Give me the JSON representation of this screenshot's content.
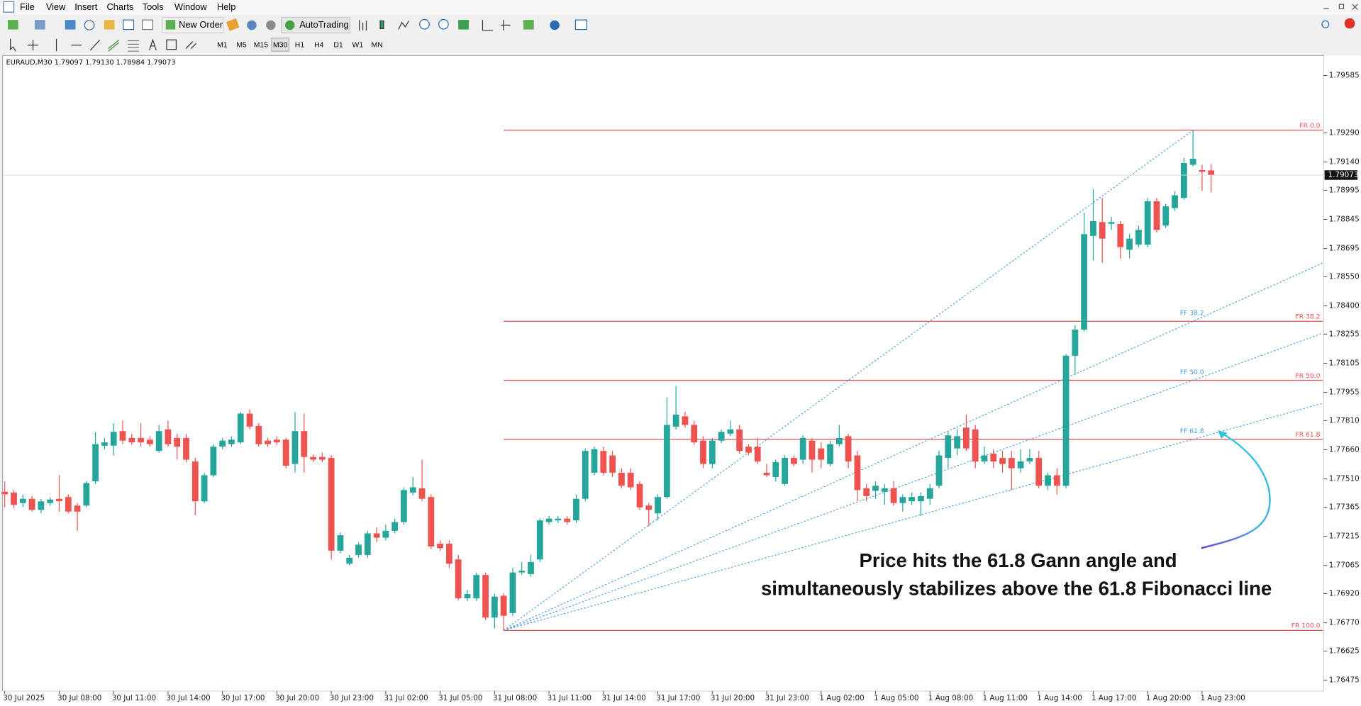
{
  "window": {
    "menu": [
      "File",
      "View",
      "Insert",
      "Charts",
      "Tools",
      "Window",
      "Help"
    ],
    "toolbar": {
      "new_order": "New Order",
      "autotrading": "AutoTrading",
      "timeframes": [
        "M1",
        "M5",
        "M15",
        "M30",
        "H1",
        "H4",
        "D1",
        "W1",
        "MN"
      ]
    }
  },
  "chart_data": {
    "type": "candlestick",
    "title": "EURAUD,M30  1.79097 1.79130 1.78984 1.79073",
    "up_color": "#26a69a",
    "down_color": "#ef5350",
    "categories": [
      "30 Jul 2025",
      null,
      null,
      null,
      null,
      null,
      "30 Jul 08:00",
      null,
      null,
      null,
      null,
      null,
      "30 Jul 11:00",
      null,
      null,
      null,
      null,
      null,
      "30 Jul 14:00",
      null,
      null,
      null,
      null,
      null,
      "30 Jul 17:00",
      null,
      null,
      null,
      null,
      null,
      "30 Jul 20:00",
      null,
      null,
      null,
      null,
      null,
      "30 Jul 23:00",
      null,
      null,
      null,
      null,
      null,
      "31 Jul 02:00",
      null,
      null,
      null,
      null,
      null,
      "31 Jul 05:00",
      null,
      null,
      null,
      null,
      null,
      "31 Jul 08:00",
      null,
      null,
      null,
      null,
      null,
      "31 Jul 11:00",
      null,
      null,
      null,
      null,
      null,
      "31 Jul 14:00",
      null,
      null,
      null,
      null,
      null,
      "31 Jul 17:00",
      null,
      null,
      null,
      null,
      null,
      "31 Jul 20:00",
      null,
      null,
      null,
      null,
      null,
      "31 Jul 23:00",
      null,
      null,
      null,
      null,
      null,
      "1 Aug 02:00",
      null,
      null,
      null,
      null,
      null,
      "1 Aug 05:00",
      null,
      null,
      null,
      null,
      null,
      "1 Aug 08:00",
      null,
      null,
      null,
      null,
      null,
      "1 Aug 11:00",
      null,
      null,
      null,
      null,
      null,
      "1 Aug 14:00",
      null,
      null,
      null,
      null,
      null,
      "1 Aug 17:00",
      null,
      null,
      null,
      null,
      null,
      "1 Aug 20:00",
      null,
      null,
      null,
      null,
      null,
      "1 Aug 23:00",
      null
    ],
    "open": [
      1.77444,
      1.7744,
      1.77386,
      1.77408,
      1.77351,
      1.77386,
      1.77408,
      1.77417,
      1.77373,
      1.77373,
      1.77498,
      1.77681,
      1.77681,
      1.77756,
      1.77721,
      1.77721,
      1.77712,
      1.77654,
      1.77765,
      1.77721,
      1.77721,
      1.776,
      1.77395,
      1.77529,
      1.77676,
      1.77689,
      1.77698,
      1.77846,
      1.77783,
      1.77707,
      1.77712,
      1.77712,
      1.77587,
      1.77756,
      1.77623,
      1.77623,
      1.77618,
      1.77141,
      1.77074,
      1.77119,
      1.77119,
      1.7723,
      1.77208,
      1.77243,
      1.77288,
      1.7744,
      1.77462,
      1.77417,
      1.77177,
      1.77177,
      1.77096,
      1.76896,
      1.76896,
      1.77016,
      1.76797,
      1.76909,
      1.7682,
      1.77029,
      1.7702,
      1.77096,
      1.77288,
      1.77297,
      1.77306,
      1.77297,
      1.77408,
      1.77542,
      1.77654,
      1.77631,
      1.77542,
      1.77542,
      1.77484,
      1.77373,
      1.77333,
      1.77417,
      1.77779,
      1.77832,
      1.77788,
      1.77707,
      1.77587,
      1.77707,
      1.77743,
      1.77765,
      1.77676,
      1.77676,
      1.77542,
      1.7752,
      1.77484,
      1.77618,
      1.77609,
      1.77707,
      1.77667,
      1.77587,
      1.77689,
      1.7773,
      1.77631,
      1.77462,
      1.77449,
      1.77444,
      1.77462,
      1.77386,
      1.77395,
      1.77395,
      1.77408,
      1.77475,
      1.77618,
      1.77667,
      1.77774,
      1.77765,
      1.776,
      1.7764,
      1.77618,
      1.77618,
      1.77565,
      1.776,
      1.77618,
      1.77475,
      1.77529,
      1.77475,
      1.78144,
      1.78278,
      1.7876,
      1.78831,
      1.78822,
      1.78822,
      1.78689,
      1.78715,
      1.78715,
      1.78938,
      1.78813,
      1.78903,
      1.78956,
      1.79126,
      1.79099,
      1.79097
    ],
    "high": [
      1.77498,
      1.77453,
      1.77431,
      1.77422,
      1.77408,
      1.77417,
      1.77529,
      1.77431,
      1.77386,
      1.77498,
      1.77752,
      1.77721,
      1.77797,
      1.7781,
      1.77743,
      1.77797,
      1.7773,
      1.77788,
      1.7781,
      1.77743,
      1.77743,
      1.77618,
      1.77542,
      1.77689,
      1.77721,
      1.7773,
      1.77855,
      1.77868,
      1.77797,
      1.77721,
      1.7773,
      1.77721,
      1.77855,
      1.77846,
      1.77636,
      1.77645,
      1.77631,
      1.77235,
      1.77119,
      1.77185,
      1.77243,
      1.77261,
      1.77275,
      1.77306,
      1.77467,
      1.7752,
      1.77609,
      1.77431,
      1.77194,
      1.77194,
      1.77119,
      1.7694,
      1.77029,
      1.77029,
      1.76918,
      1.76922,
      1.77052,
      1.77083,
      1.77119,
      1.77306,
      1.77319,
      1.77319,
      1.77319,
      1.77431,
      1.77667,
      1.77676,
      1.77676,
      1.77654,
      1.77565,
      1.77565,
      1.77498,
      1.77386,
      1.77431,
      1.7793,
      1.77988,
      1.77855,
      1.7781,
      1.7773,
      1.77721,
      1.77765,
      1.7781,
      1.77788,
      1.77689,
      1.77721,
      1.77587,
      1.77609,
      1.77631,
      1.77631,
      1.77734,
      1.77721,
      1.77698,
      1.77707,
      1.77788,
      1.77743,
      1.77654,
      1.77484,
      1.77498,
      1.77484,
      1.77498,
      1.77431,
      1.7744,
      1.7744,
      1.77484,
      1.77654,
      1.77752,
      1.77765,
      1.77841,
      1.77788,
      1.77676,
      1.77663,
      1.77654,
      1.77654,
      1.77663,
      1.77663,
      1.77654,
      1.77542,
      1.77565,
      1.78153,
      1.783,
      1.7888,
      1.79001,
      1.78956,
      1.78858,
      1.78836,
      1.78769,
      1.78813,
      1.78956,
      1.78956,
      1.78925,
      1.78992,
      1.79161,
      1.79304,
      1.79126,
      1.7913
    ],
    "low": [
      1.77364,
      1.77359,
      1.77364,
      1.77342,
      1.77333,
      1.77373,
      1.77342,
      1.77333,
      1.77243,
      1.77364,
      1.77484,
      1.77663,
      1.77631,
      1.77689,
      1.77685,
      1.77676,
      1.77676,
      1.77645,
      1.77676,
      1.77609,
      1.77596,
      1.77324,
      1.77386,
      1.7752,
      1.77663,
      1.77676,
      1.77689,
      1.77765,
      1.77676,
      1.77676,
      1.77685,
      1.77565,
      1.77542,
      1.77542,
      1.77596,
      1.77596,
      1.77096,
      1.77128,
      1.77065,
      1.77105,
      1.77105,
      1.77185,
      1.77194,
      1.7723,
      1.77275,
      1.77426,
      1.77395,
      1.7715,
      1.77141,
      1.77052,
      1.76887,
      1.76882,
      1.76882,
      1.76784,
      1.7674,
      1.76731,
      1.76806,
      1.77016,
      1.77007,
      1.77083,
      1.77275,
      1.77284,
      1.77275,
      1.77284,
      1.77395,
      1.77529,
      1.77529,
      1.7752,
      1.77462,
      1.77453,
      1.77351,
      1.77266,
      1.77297,
      1.77408,
      1.77765,
      1.77774,
      1.77685,
      1.77565,
      1.77565,
      1.77694,
      1.7773,
      1.7764,
      1.77631,
      1.77587,
      1.7752,
      1.77498,
      1.77475,
      1.77574,
      1.77587,
      1.77542,
      1.77565,
      1.77574,
      1.77676,
      1.77565,
      1.77395,
      1.77395,
      1.77408,
      1.77377,
      1.77373,
      1.77342,
      1.77377,
      1.77319,
      1.77377,
      1.77462,
      1.77565,
      1.77631,
      1.77654,
      1.77565,
      1.77587,
      1.77565,
      1.77542,
      1.77453,
      1.77542,
      1.77587,
      1.77462,
      1.77453,
      1.77431,
      1.77462,
      1.78046,
      1.78269,
      1.78635,
      1.78622,
      1.78791,
      1.78644,
      1.78644,
      1.78702,
      1.78702,
      1.78778,
      1.788,
      1.78889,
      1.78947,
      1.79117,
      1.78992,
      1.78984
    ],
    "close": [
      1.77431,
      1.77377,
      1.77408,
      1.77351,
      1.77395,
      1.77404,
      1.77395,
      1.77342,
      1.77342,
      1.77489,
      1.77689,
      1.77698,
      1.77752,
      1.77707,
      1.77698,
      1.77698,
      1.77689,
      1.77756,
      1.77689,
      1.77676,
      1.77609,
      1.77395,
      1.77529,
      1.77676,
      1.77707,
      1.77712,
      1.77846,
      1.77779,
      1.77689,
      1.77689,
      1.77698,
      1.77578,
      1.77756,
      1.77623,
      1.77609,
      1.77609,
      1.77141,
      1.77221,
      1.77105,
      1.77172,
      1.7723,
      1.77208,
      1.77243,
      1.77288,
      1.77453,
      1.77467,
      1.77408,
      1.77163,
      1.77154,
      1.77074,
      1.76896,
      1.76918,
      1.77016,
      1.76797,
      1.76905,
      1.76806,
      1.77029,
      1.77038,
      1.77083,
      1.77297,
      1.77306,
      1.77306,
      1.77288,
      1.77408,
      1.77654,
      1.77663,
      1.77542,
      1.77542,
      1.77475,
      1.77467,
      1.77364,
      1.77351,
      1.77417,
      1.77788,
      1.77841,
      1.77788,
      1.77698,
      1.77587,
      1.77707,
      1.77752,
      1.77765,
      1.77654,
      1.77645,
      1.776,
      1.77529,
      1.77596,
      1.77618,
      1.77587,
      1.77721,
      1.77609,
      1.77609,
      1.77689,
      1.77721,
      1.776,
      1.77453,
      1.77422,
      1.77475,
      1.77462,
      1.77386,
      1.77417,
      1.77417,
      1.77422,
      1.77462,
      1.77631,
      1.77734,
      1.7773,
      1.77667,
      1.776,
      1.77631,
      1.776,
      1.77587,
      1.77565,
      1.776,
      1.77618,
      1.77475,
      1.77529,
      1.77475,
      1.78144,
      1.78278,
      1.78769,
      1.78836,
      1.78746,
      1.78831,
      1.78702,
      1.78746,
      1.78791,
      1.78938,
      1.78791,
      1.78912,
      1.78969,
      1.79135,
      1.79157,
      1.7909,
      1.79073
    ],
    "ylim": [
      1.76418,
      1.79679
    ],
    "yticks": [
      1.79585,
      {
        "value": 1.7929,
        "label": "1.79290"
      },
      {
        "value": 1.7914,
        "label": "1.79140"
      },
      1.78995,
      1.78845,
      1.78695,
      {
        "value": 1.7855,
        "label": "1.78550"
      },
      {
        "value": 1.784,
        "label": "1.78400"
      },
      1.78255,
      1.78105,
      1.77955,
      {
        "value": 1.7781,
        "label": "1.77810"
      },
      {
        "value": 1.7766,
        "label": "1.77660"
      },
      {
        "value": 1.7751,
        "label": "1.77510"
      },
      1.77365,
      1.77215,
      1.77065,
      {
        "value": 1.7692,
        "label": "1.76920"
      },
      {
        "value": 1.7677,
        "label": "1.76770"
      },
      1.76625,
      1.76475
    ],
    "fibonacci_retracement": {
      "high": 1.79304,
      "low": 1.76731,
      "color": "#e05252",
      "levels": [
        {
          "value": 0,
          "label": "FR 0.0"
        },
        {
          "value": 38.2,
          "label": "FR 38.2"
        },
        {
          "value": 50,
          "label": "FR 50.0"
        },
        {
          "value": 61.8,
          "label": "FR 61.8"
        },
        {
          "value": 100,
          "label": "FR 100.0"
        }
      ]
    },
    "fibonacci_fan": {
      "color": "#3d9be9",
      "levels": [
        {
          "value": 38.2,
          "label": "FF 38.2"
        },
        {
          "value": 50,
          "label": "FF 50.0"
        },
        {
          "value": 61.8,
          "label": "FF 61.8"
        }
      ]
    },
    "annotation": [
      "Price hits the 61.8 Gann angle and",
      "simultaneously stabilizes above the 61.8 Fibonacci line"
    ]
  }
}
